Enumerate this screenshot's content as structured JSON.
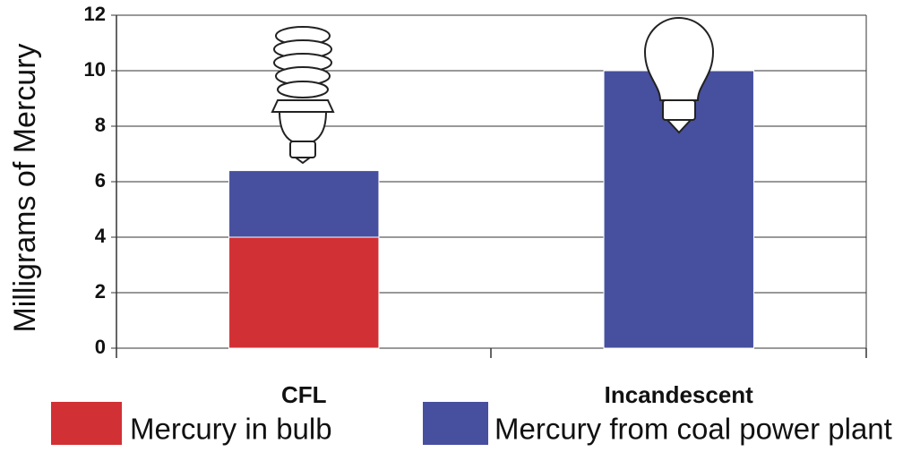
{
  "chart_data": {
    "type": "stacked-bar",
    "y_label": "Milligrams of Mercury",
    "categories": [
      "CFL",
      "Incandescent"
    ],
    "series": [
      {
        "name": "Mercury in bulb",
        "color": "#d13034",
        "values": [
          4,
          0
        ]
      },
      {
        "name": "Mercury from coal power plant",
        "color": "#474f9f",
        "values": [
          2.4,
          10
        ]
      }
    ],
    "ylim": [
      0,
      12
    ],
    "yticks": [
      0,
      2,
      4,
      6,
      8,
      10,
      12
    ],
    "grid": true
  }
}
